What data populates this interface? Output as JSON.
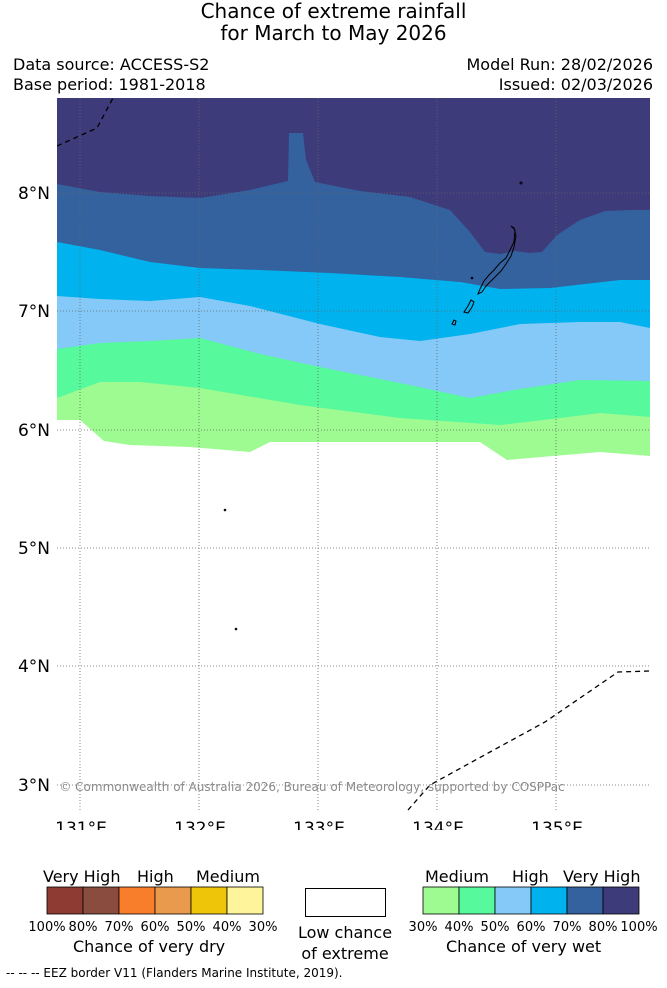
{
  "title": {
    "line1": "Chance of extreme rainfall",
    "line2": "for March to May 2026"
  },
  "info": {
    "data_source": "Data source: ACCESS-S2",
    "base_period": "Base period: 1981-2018",
    "model_run": "Model Run: 28/02/2026",
    "issued": "Issued: 02/03/2026"
  },
  "map": {
    "lat_labels": [
      "8°N",
      "7°N",
      "6°N",
      "5°N",
      "4°N",
      "3°N"
    ],
    "lon_labels": [
      "131°E",
      "132°E",
      "133°E",
      "134°E",
      "135°E"
    ],
    "copyright": "© Commonwealth of Australia 2026, Bureau of Meteorology, supported by COSPPac",
    "colors": {
      "wet_30_40": "#9dfb92",
      "wet_40_50": "#56f99b",
      "wet_50_60": "#84c9f7",
      "wet_60_70": "#00b2ed",
      "wet_70_80": "#33629e",
      "wet_80_100": "#3d3b79"
    }
  },
  "legend_dry": {
    "headings": [
      "Very High",
      "High",
      "Medium"
    ],
    "ticks": [
      "100%",
      "80%",
      "70%",
      "60%",
      "50%",
      "40%",
      "30%"
    ],
    "caption": "Chance of very dry",
    "colors": [
      "#8e3b33",
      "#8a4c3e",
      "#f97e2b",
      "#ea9a4c",
      "#eec508",
      "#fdf49b"
    ]
  },
  "legend_low": {
    "line1": "Low chance",
    "line2": "of extreme"
  },
  "legend_wet": {
    "headings": [
      "Medium",
      "High",
      "Very High"
    ],
    "ticks": [
      "30%",
      "40%",
      "50%",
      "60%",
      "70%",
      "80%",
      "100%"
    ],
    "caption": "Chance of very wet",
    "colors": [
      "#9dfb92",
      "#56f99b",
      "#84c9f7",
      "#00b2ed",
      "#33629e",
      "#3d3b79"
    ]
  },
  "footnote": "--  --  -- EEZ border V11 (Flanders Marine Institute, 2019)."
}
